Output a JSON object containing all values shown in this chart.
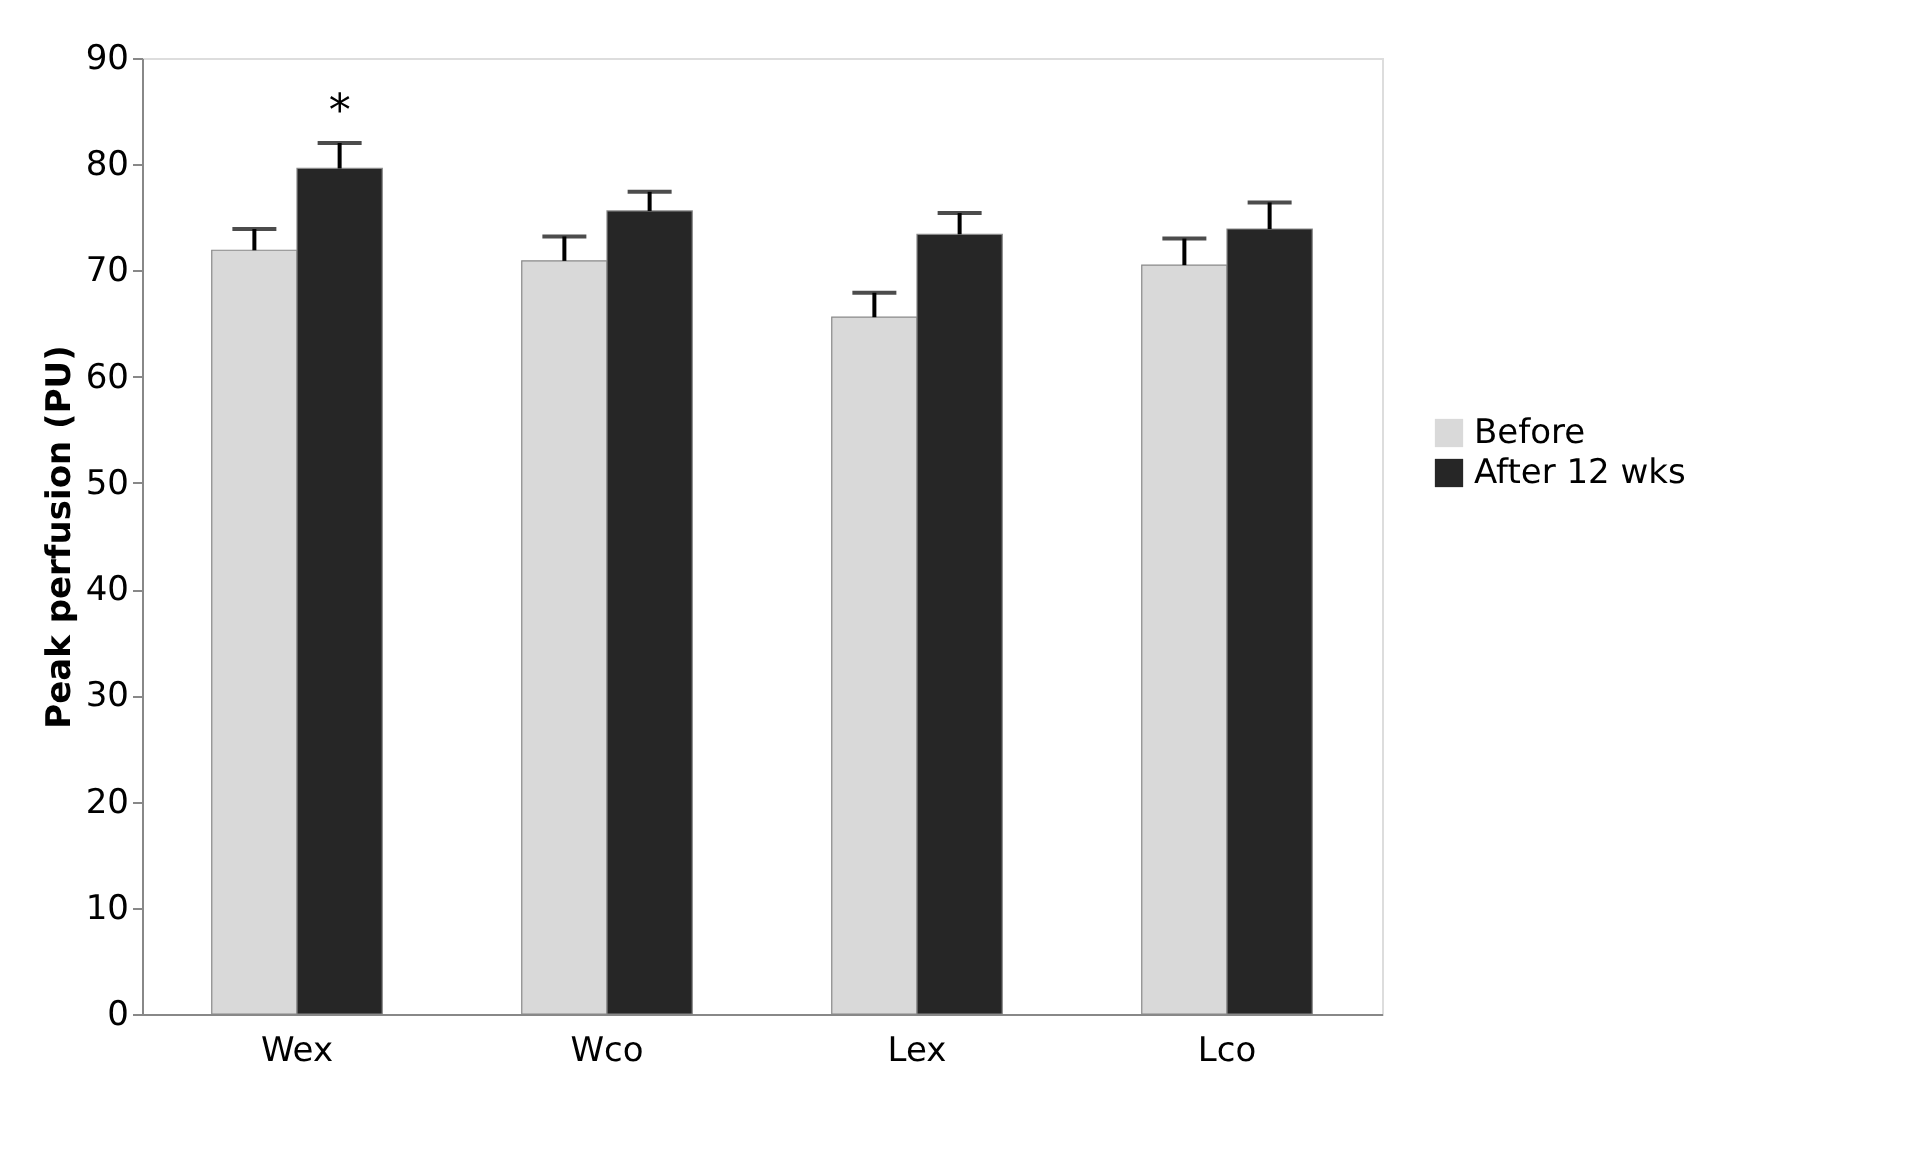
{
  "chart_data": {
    "type": "bar",
    "ylabel": "Peak perfusion (PU)",
    "categories": [
      "Wex",
      "Wco",
      "Lex",
      "Lco"
    ],
    "series": [
      {
        "name": "Before",
        "color": "#d9d9d9",
        "values": [
          71.9,
          70.9,
          65.6,
          70.5
        ],
        "errors": [
          [
            71.9,
            73.9
          ],
          [
            70.9,
            73.2
          ],
          [
            65.6,
            67.9
          ],
          [
            70.5,
            73.0
          ]
        ]
      },
      {
        "name": "After 12 wks",
        "color": "#262626",
        "values": [
          79.6,
          75.6,
          73.4,
          73.9
        ],
        "errors": [
          [
            79.6,
            82.0
          ],
          [
            75.6,
            77.4
          ],
          [
            73.4,
            75.4
          ],
          [
            73.9,
            76.4
          ]
        ]
      }
    ],
    "annotations": [
      "*"
    ],
    "ylim": [
      0,
      90
    ],
    "yticks": [
      0,
      10,
      20,
      30,
      40,
      50,
      60,
      70,
      80,
      90
    ],
    "grid": false,
    "legend": "right"
  }
}
